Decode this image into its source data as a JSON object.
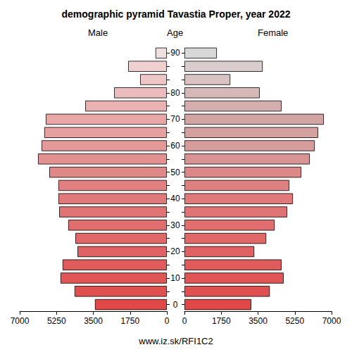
{
  "chart_data": {
    "type": "bar",
    "orientation": "horizontal",
    "title": "demographic pyramid Tavastia Proper, year 2022",
    "ylabel": "Age",
    "annotations": [
      "www.iz.sk/RFI1C2"
    ],
    "categories": [
      "0",
      null,
      "10",
      null,
      "20",
      null,
      "30",
      null,
      "40",
      null,
      "50",
      null,
      "60",
      null,
      "70",
      null,
      "80",
      null,
      null,
      "90"
    ],
    "series": [
      {
        "name": "Male",
        "values": [
          3420,
          4390,
          5060,
          4960,
          4250,
          4350,
          4690,
          5120,
          5160,
          5160,
          5590,
          6130,
          5960,
          5830,
          5760,
          3880,
          2510,
          1270,
          1840,
          540
        ],
        "colors": [
          "#e04848",
          "#e05050",
          "#e05656",
          "#e05c5c",
          "#e06262",
          "#e06868",
          "#e06e6e",
          "#e07474",
          "#e07a7a",
          "#e08080",
          "#e08888",
          "#e29090",
          "#e49898",
          "#e6a0a0",
          "#e8a8a8",
          "#eab2b2",
          "#ecbcbc",
          "#eec6c6",
          "#f0d0d0",
          "#f0e0e0"
        ]
      },
      {
        "name": "Female",
        "values": [
          3180,
          4060,
          4720,
          4620,
          3320,
          3890,
          4290,
          4890,
          5160,
          4990,
          5560,
          5960,
          6200,
          6360,
          6630,
          4620,
          3580,
          2180,
          3720,
          1540
        ],
        "colors": [
          "#e04848",
          "#e05050",
          "#e05656",
          "#e05c5c",
          "#e06262",
          "#e06868",
          "#e06e6e",
          "#e07474",
          "#e07a7a",
          "#de8080",
          "#dc8888",
          "#d89494",
          "#d69c9c",
          "#d4a0a0",
          "#d2a4a4",
          "#d4aeae",
          "#d6b8b8",
          "#d8c2c2",
          "#d8cccc",
          "#d8d8d8"
        ]
      }
    ],
    "xlim": [
      0,
      7000
    ],
    "xticks": [
      0,
      1750,
      3500,
      5250,
      7000
    ],
    "grid": false
  }
}
